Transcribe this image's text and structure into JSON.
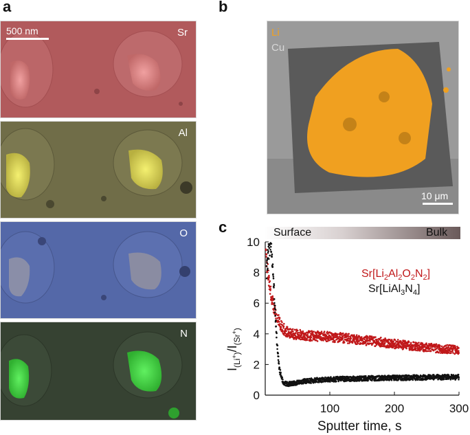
{
  "panel_a": {
    "label": "a",
    "scale_bar": "500 nm",
    "maps": [
      {
        "element": "Sr",
        "color": "#d45a5a"
      },
      {
        "element": "Al",
        "color": "#c9c240"
      },
      {
        "element": "O",
        "color": "#5a6fc4"
      },
      {
        "element": "N",
        "color": "#3cd23c"
      }
    ]
  },
  "panel_b": {
    "label": "b",
    "legend": [
      {
        "element": "Li",
        "color": "#f0a020"
      },
      {
        "element": "Cu",
        "color": "#b0b0b0"
      }
    ],
    "scale_bar": "10 μm"
  },
  "panel_c": {
    "label": "c",
    "gradient_labels": {
      "left": "Surface",
      "right": "Bulk"
    },
    "ylabel_main": "I",
    "ylabel_sub1": "(Li",
    "ylabel_sup1": "+",
    "ylabel_mid": ")/I",
    "ylabel_sub2": "(Sr",
    "ylabel_sup2": "+",
    "ylabel_end": ")",
    "xlabel": "Sputter time, s",
    "legend": [
      {
        "prefix": "Sr[Li",
        "s1": "2",
        "m1": "Al",
        "s2": "2",
        "m2": "O",
        "s3": "2",
        "m3": "N",
        "s4": "2",
        "suffix": "]",
        "color": "#c0181a"
      },
      {
        "prefix": "Sr[LiAl",
        "s1": "3",
        "m1": "N",
        "s2": "4",
        "m2": "",
        "s3": "",
        "m3": "",
        "s4": "",
        "suffix": "]",
        "color": "#111111"
      }
    ]
  },
  "chart_data": {
    "type": "scatter",
    "xlabel": "Sputter time, s",
    "ylabel": "I(Li+)/I(Sr+)",
    "xlim": [
      0,
      300
    ],
    "ylim": [
      0,
      10
    ],
    "xticks": [
      100,
      200,
      300
    ],
    "yticks": [
      0,
      2,
      4,
      6,
      8,
      10
    ],
    "series": [
      {
        "name": "Sr[Li2Al2O2N2]",
        "color": "#c0181a",
        "points": [
          [
            1,
            9.2
          ],
          [
            3,
            8.4
          ],
          [
            5,
            7.6
          ],
          [
            7,
            7.0
          ],
          [
            9,
            6.5
          ],
          [
            11,
            6.1
          ],
          [
            14,
            5.6
          ],
          [
            17,
            5.2
          ],
          [
            20,
            4.9
          ],
          [
            25,
            4.5
          ],
          [
            30,
            4.25
          ],
          [
            35,
            4.1
          ],
          [
            40,
            4.0
          ],
          [
            50,
            3.95
          ],
          [
            60,
            3.9
          ],
          [
            80,
            3.85
          ],
          [
            100,
            3.8
          ],
          [
            130,
            3.7
          ],
          [
            160,
            3.55
          ],
          [
            190,
            3.4
          ],
          [
            220,
            3.25
          ],
          [
            250,
            3.1
          ],
          [
            280,
            3.0
          ],
          [
            300,
            2.95
          ]
        ]
      },
      {
        "name": "Sr[LiAl3N4]",
        "color": "#111111",
        "points": [
          [
            2,
            8.0
          ],
          [
            4,
            9.0
          ],
          [
            6,
            9.6
          ],
          [
            8,
            10.0
          ],
          [
            10,
            9.6
          ],
          [
            12,
            8.2
          ],
          [
            14,
            6.5
          ],
          [
            16,
            5.0
          ],
          [
            18,
            3.6
          ],
          [
            20,
            2.5
          ],
          [
            22,
            1.7
          ],
          [
            25,
            1.15
          ],
          [
            28,
            0.85
          ],
          [
            32,
            0.75
          ],
          [
            36,
            0.72
          ],
          [
            40,
            0.75
          ],
          [
            50,
            0.82
          ],
          [
            60,
            0.9
          ],
          [
            80,
            0.98
          ],
          [
            100,
            1.03
          ],
          [
            130,
            1.07
          ],
          [
            160,
            1.1
          ],
          [
            200,
            1.13
          ],
          [
            250,
            1.16
          ],
          [
            300,
            1.18
          ]
        ]
      }
    ]
  }
}
